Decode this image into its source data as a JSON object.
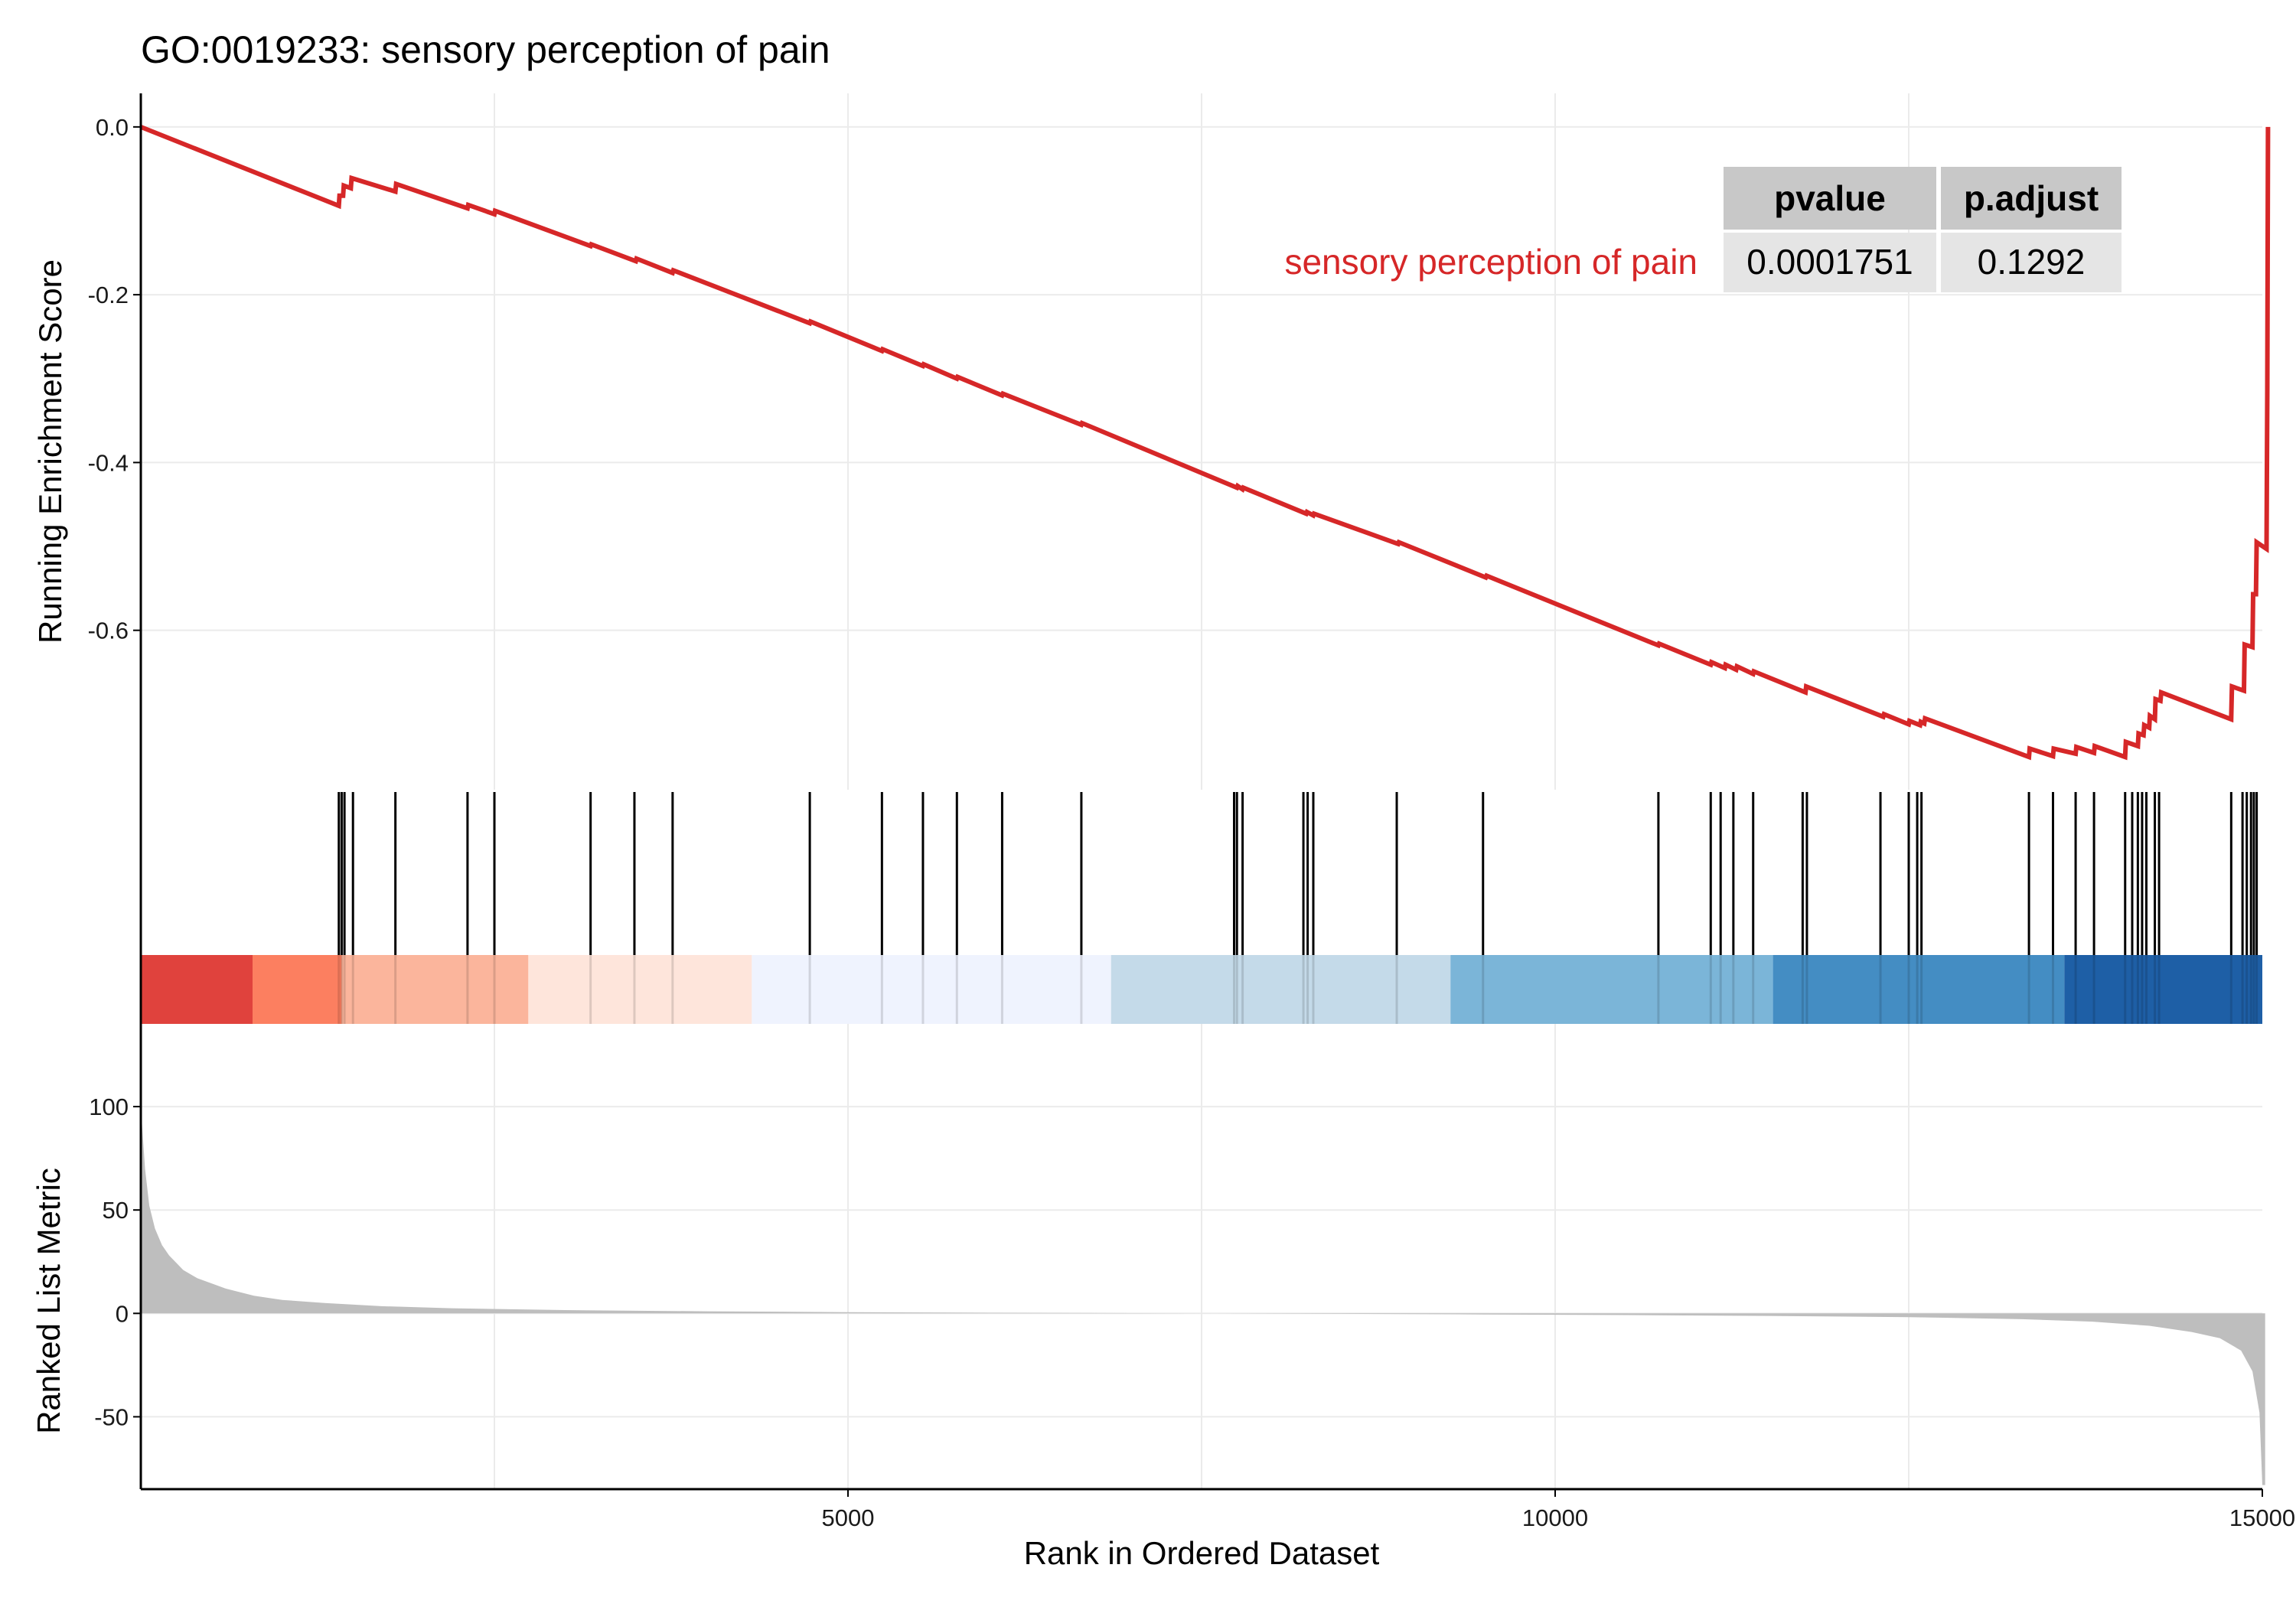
{
  "chart_data": {
    "type": "line",
    "title": "GO:0019233: sensory perception of pain",
    "xlabel": "Rank in Ordered Dataset",
    "xlim": [
      0,
      15000
    ],
    "x_ticks": [
      5000,
      10000,
      15000
    ],
    "x_tick_labels": [
      "5000",
      "10000",
      "15000"
    ],
    "grid": true,
    "running_es": {
      "ylabel": "Running Enrichment Score",
      "ylim": [
        -0.79,
        0.04
      ],
      "y_ticks": [
        0.0,
        -0.2,
        -0.4,
        -0.6
      ],
      "y_tick_labels": [
        "0.0",
        "-0.2",
        "-0.4",
        "-0.6"
      ],
      "line_color": "#D62728",
      "points": [
        [
          0,
          0.0
        ],
        [
          1400,
          -0.094
        ],
        [
          1405,
          -0.082
        ],
        [
          1430,
          -0.082
        ],
        [
          1435,
          -0.07
        ],
        [
          1485,
          -0.073
        ],
        [
          1490,
          -0.061
        ],
        [
          1800,
          -0.077
        ],
        [
          1805,
          -0.068
        ],
        [
          2310,
          -0.097
        ],
        [
          2315,
          -0.093
        ],
        [
          2500,
          -0.104
        ],
        [
          2505,
          -0.1
        ],
        [
          3180,
          -0.142
        ],
        [
          3185,
          -0.14
        ],
        [
          3500,
          -0.16
        ],
        [
          3505,
          -0.157
        ],
        [
          3760,
          -0.174
        ],
        [
          3765,
          -0.171
        ],
        [
          4730,
          -0.234
        ],
        [
          4735,
          -0.232
        ],
        [
          5240,
          -0.267
        ],
        [
          5245,
          -0.265
        ],
        [
          5530,
          -0.285
        ],
        [
          5535,
          -0.283
        ],
        [
          5770,
          -0.3
        ],
        [
          5775,
          -0.298
        ],
        [
          6090,
          -0.32
        ],
        [
          6095,
          -0.318
        ],
        [
          6650,
          -0.355
        ],
        [
          6655,
          -0.353
        ],
        [
          7750,
          -0.43
        ],
        [
          7755,
          -0.428
        ],
        [
          7790,
          -0.432
        ],
        [
          7795,
          -0.43
        ],
        [
          8240,
          -0.461
        ],
        [
          8245,
          -0.459
        ],
        [
          8290,
          -0.463
        ],
        [
          8295,
          -0.461
        ],
        [
          8890,
          -0.497
        ],
        [
          8895,
          -0.495
        ],
        [
          9510,
          -0.537
        ],
        [
          9515,
          -0.535
        ],
        [
          10730,
          -0.618
        ],
        [
          10735,
          -0.616
        ],
        [
          11100,
          -0.641
        ],
        [
          11105,
          -0.638
        ],
        [
          11200,
          -0.645
        ],
        [
          11205,
          -0.641
        ],
        [
          11280,
          -0.647
        ],
        [
          11285,
          -0.643
        ],
        [
          11400,
          -0.652
        ],
        [
          11405,
          -0.649
        ],
        [
          11770,
          -0.674
        ],
        [
          11775,
          -0.667
        ],
        [
          12320,
          -0.703
        ],
        [
          12325,
          -0.7
        ],
        [
          12500,
          -0.712
        ],
        [
          12505,
          -0.708
        ],
        [
          12580,
          -0.713
        ],
        [
          12585,
          -0.709
        ],
        [
          12610,
          -0.711
        ],
        [
          12615,
          -0.705
        ],
        [
          13350,
          -0.751
        ],
        [
          13355,
          -0.741
        ],
        [
          13520,
          -0.75
        ],
        [
          13525,
          -0.741
        ],
        [
          13680,
          -0.747
        ],
        [
          13685,
          -0.739
        ],
        [
          13810,
          -0.746
        ],
        [
          13815,
          -0.738
        ],
        [
          14030,
          -0.751
        ],
        [
          14035,
          -0.733
        ],
        [
          14120,
          -0.738
        ],
        [
          14125,
          -0.723
        ],
        [
          14160,
          -0.725
        ],
        [
          14165,
          -0.713
        ],
        [
          14200,
          -0.716
        ],
        [
          14205,
          -0.702
        ],
        [
          14240,
          -0.706
        ],
        [
          14245,
          -0.682
        ],
        [
          14280,
          -0.684
        ],
        [
          14285,
          -0.674
        ],
        [
          14780,
          -0.706
        ],
        [
          14785,
          -0.667
        ],
        [
          14870,
          -0.672
        ],
        [
          14875,
          -0.617
        ],
        [
          14930,
          -0.62
        ],
        [
          14935,
          -0.557
        ],
        [
          14955,
          -0.557
        ],
        [
          14960,
          -0.495
        ],
        [
          15030,
          -0.503
        ],
        [
          15035,
          -0.313
        ],
        [
          15040,
          0.0
        ]
      ]
    },
    "gene_hits": [
      1400,
      1420,
      1440,
      1500,
      1800,
      2310,
      2500,
      3180,
      3490,
      3760,
      4730,
      5240,
      5530,
      5770,
      6090,
      6650,
      7730,
      7750,
      7790,
      8220,
      8250,
      8290,
      8880,
      9490,
      10730,
      11100,
      11170,
      11260,
      11400,
      11750,
      11780,
      12300,
      12500,
      12560,
      12590,
      13350,
      13520,
      13680,
      13810,
      14030,
      14080,
      14120,
      14150,
      14180,
      14240,
      14270,
      14780,
      14860,
      14890,
      14920,
      14940,
      14960
    ],
    "color_bands": [
      {
        "from": 0,
        "to": 790,
        "color": "#E0423D"
      },
      {
        "from": 790,
        "to": 1420,
        "color": "#FC7F60"
      },
      {
        "from": 1420,
        "to": 2740,
        "color": "#FBB59C"
      },
      {
        "from": 2740,
        "to": 4320,
        "color": "#FEE5DB"
      },
      {
        "from": 4320,
        "to": 6860,
        "color": "#EFF3FE"
      },
      {
        "from": 6860,
        "to": 9260,
        "color": "#C4DAE9"
      },
      {
        "from": 9260,
        "to": 11540,
        "color": "#7BB5D8"
      },
      {
        "from": 11540,
        "to": 13600,
        "color": "#448DC3"
      },
      {
        "from": 13600,
        "to": 15000,
        "color": "#1E5FA6"
      }
    ],
    "ranked_metric": {
      "ylabel": "Ranked List Metric",
      "ylim": [
        -85,
        140
      ],
      "y_ticks": [
        100,
        50,
        0,
        -50
      ],
      "y_tick_labels": [
        "100",
        "50",
        "0",
        "-50"
      ],
      "fill_color": "#BEBEBE",
      "points": [
        [
          0,
          100
        ],
        [
          30,
          70
        ],
        [
          60,
          52
        ],
        [
          100,
          41
        ],
        [
          150,
          33
        ],
        [
          200,
          28
        ],
        [
          300,
          21
        ],
        [
          400,
          17
        ],
        [
          600,
          12
        ],
        [
          800,
          8.5
        ],
        [
          1000,
          6.5
        ],
        [
          1300,
          5
        ],
        [
          1700,
          3.5
        ],
        [
          2200,
          2.5
        ],
        [
          3000,
          1.6
        ],
        [
          4000,
          1
        ],
        [
          5000,
          0.6
        ],
        [
          6000,
          0.3
        ],
        [
          7000,
          0.1
        ],
        [
          7600,
          0
        ],
        [
          8500,
          -0.2
        ],
        [
          9500,
          -0.5
        ],
        [
          10500,
          -0.8
        ],
        [
          11500,
          -1.2
        ],
        [
          12500,
          -1.8
        ],
        [
          13300,
          -2.8
        ],
        [
          13800,
          -4
        ],
        [
          14200,
          -6
        ],
        [
          14500,
          -9
        ],
        [
          14700,
          -12
        ],
        [
          14850,
          -18
        ],
        [
          14930,
          -28
        ],
        [
          14980,
          -48
        ],
        [
          15000,
          -83
        ],
        [
          15020,
          -83
        ]
      ]
    },
    "table": {
      "headers": [
        "pvalue",
        "p.adjust"
      ],
      "row_label": "sensory perception of pain",
      "values": [
        "0.0001751",
        "0.1292"
      ],
      "header_fill": "#C8C8C8",
      "cell_fill": "#E5E5E5",
      "label_color": "#D62728"
    }
  }
}
